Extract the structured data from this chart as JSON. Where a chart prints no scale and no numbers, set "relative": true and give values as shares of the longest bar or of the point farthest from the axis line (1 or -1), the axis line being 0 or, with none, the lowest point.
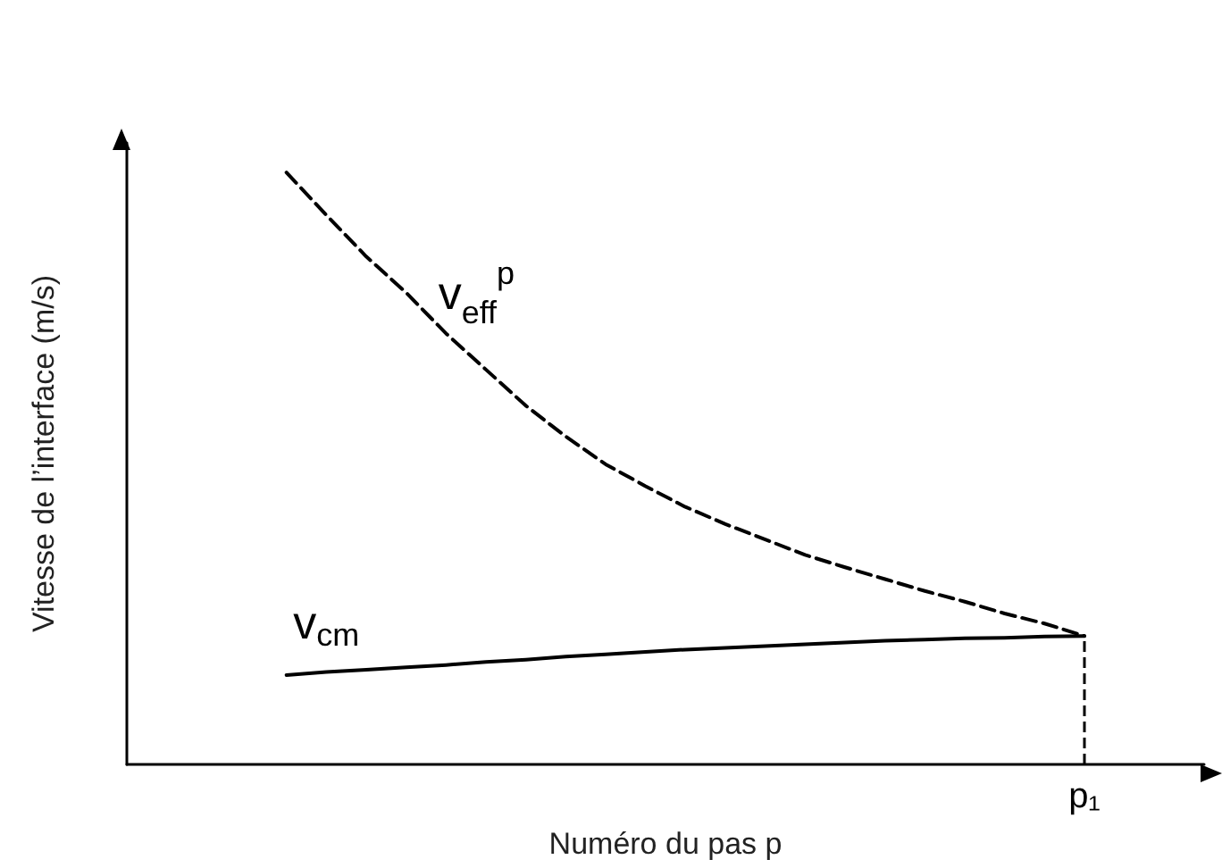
{
  "chart_data": {
    "type": "line",
    "relative": true,
    "xlabel": "Numéro du pas p",
    "ylabel": "Vitesse de l’interface (m/s)",
    "categories": [
      null,
      null,
      null,
      null,
      null,
      null,
      null,
      null,
      null,
      null,
      null,
      null,
      null,
      null,
      null,
      null,
      null,
      null,
      null,
      null,
      null,
      null,
      null,
      null,
      null,
      null,
      null,
      null
    ],
    "series": [
      {
        "name": "v$_{eff}$$^{p}$",
        "color": "#000000",
        "line_style": "dashed",
        "values": [
          null,
          null,
          null,
          null,
          1,
          0.928,
          0.858,
          0.797,
          0.728,
          0.667,
          0.606,
          0.554,
          0.507,
          0.47,
          0.435,
          0.406,
          0.38,
          0.354,
          0.333,
          0.313,
          0.293,
          0.275,
          0.255,
          0.238,
          0.217,
          null,
          null,
          null
        ]
      },
      {
        "name": "v$_{cm}$",
        "color": "#000000",
        "line_style": "solid",
        "values": [
          null,
          null,
          null,
          null,
          0.151,
          0.156,
          0.16,
          0.164,
          0.168,
          0.173,
          0.177,
          0.182,
          0.186,
          0.19,
          0.194,
          0.197,
          0.2,
          0.203,
          0.206,
          0.209,
          0.211,
          0.213,
          0.214,
          0.216,
          0.217,
          null,
          null,
          null
        ]
      }
    ],
    "ref_lines": [
      {
        "axis": "x",
        "label": "p₁",
        "line_style": "dashed",
        "color": "#000000"
      }
    ],
    "legend": false,
    "grid": false,
    "marker": "none"
  }
}
